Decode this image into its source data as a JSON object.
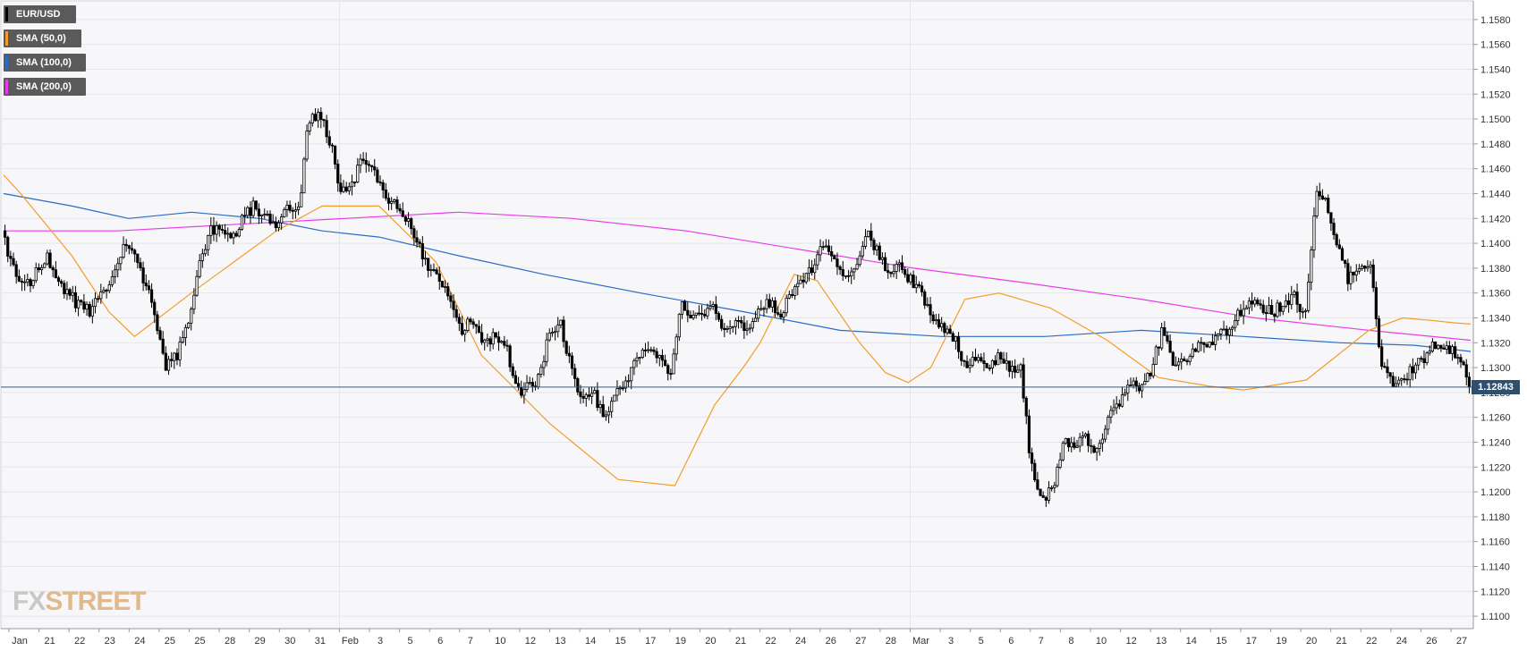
{
  "chart_data": {
    "type": "candlestick",
    "symbol": "EUR/USD",
    "legend": [
      {
        "label": "EUR/USD",
        "color": "#000000"
      },
      {
        "label": "SMA (50,0)",
        "color": "#f39c2b"
      },
      {
        "label": "SMA (100,0)",
        "color": "#2a6bc4"
      },
      {
        "label": "SMA (200,0)",
        "color": "#e83de8"
      }
    ],
    "last_price": 1.12843,
    "last_price_label": "1.12843",
    "ylim": [
      1.109,
      1.1595
    ],
    "y_ticks": [
      "1.1100",
      "1.1120",
      "1.1140",
      "1.1160",
      "1.1180",
      "1.1200",
      "1.1220",
      "1.1240",
      "1.1260",
      "1.1280",
      "1.1300",
      "1.1320",
      "1.1340",
      "1.1360",
      "1.1380",
      "1.1400",
      "1.1420",
      "1.1440",
      "1.1460",
      "1.1480",
      "1.1500",
      "1.1520",
      "1.1540",
      "1.1560",
      "1.1580"
    ],
    "x_ticks": [
      "Jan",
      "21",
      "22",
      "23",
      "24",
      "25",
      "25",
      "28",
      "29",
      "30",
      "31",
      "Feb",
      "3",
      "5",
      "6",
      "7",
      "10",
      "12",
      "13",
      "14",
      "15",
      "17",
      "19",
      "20",
      "21",
      "22",
      "24",
      "26",
      "27",
      "28",
      "Mar",
      "3",
      "5",
      "6",
      "7",
      "8",
      "10",
      "12",
      "13",
      "14",
      "15",
      "17",
      "19",
      "20",
      "21",
      "22",
      "24",
      "26",
      "27"
    ],
    "grid": true,
    "candle_colors": {
      "up": "#ffffff",
      "down": "#000000"
    },
    "price_path": [
      1.141,
      1.138,
      1.1365,
      1.1375,
      1.139,
      1.137,
      1.136,
      1.135,
      1.1345,
      1.136,
      1.137,
      1.1395,
      1.139,
      1.137,
      1.134,
      1.13,
      1.131,
      1.134,
      1.138,
      1.141,
      1.1415,
      1.1405,
      1.142,
      1.143,
      1.142,
      1.1415,
      1.143,
      1.142,
      1.15,
      1.1505,
      1.148,
      1.144,
      1.145,
      1.147,
      1.1455,
      1.144,
      1.143,
      1.142,
      1.14,
      1.138,
      1.137,
      1.135,
      1.133,
      1.134,
      1.132,
      1.1325,
      1.132,
      1.128,
      1.1285,
      1.129,
      1.133,
      1.1335,
      1.13,
      1.127,
      1.128,
      1.126,
      1.128,
      1.129,
      1.131,
      1.1315,
      1.131,
      1.129,
      1.135,
      1.134,
      1.1345,
      1.135,
      1.133,
      1.134,
      1.133,
      1.1345,
      1.1355,
      1.134,
      1.136,
      1.137,
      1.138,
      1.14,
      1.139,
      1.1375,
      1.138,
      1.1415,
      1.139,
      1.1375,
      1.138,
      1.137,
      1.136,
      1.134,
      1.133,
      1.1325,
      1.13,
      1.131,
      1.13,
      1.131,
      1.13,
      1.13,
      1.122,
      1.119,
      1.1205,
      1.124,
      1.1235,
      1.1245,
      1.123,
      1.126,
      1.127,
      1.129,
      1.128,
      1.13,
      1.133,
      1.13,
      1.1305,
      1.1315,
      1.132,
      1.1325,
      1.133,
      1.1345,
      1.1355,
      1.135,
      1.1345,
      1.135,
      1.136,
      1.134,
      1.144,
      1.143,
      1.14,
      1.137,
      1.1385,
      1.138,
      1.13,
      1.1285,
      1.129,
      1.13,
      1.131,
      1.132,
      1.1315,
      1.131,
      1.1284
    ],
    "sma_50": [
      [
        1.1455,
        0
      ],
      [
        1.144,
        30
      ],
      [
        1.139,
        120
      ],
      [
        1.1345,
        185
      ],
      [
        1.1325,
        230
      ],
      [
        1.136,
        330
      ],
      [
        1.141,
        480
      ],
      [
        1.143,
        560
      ],
      [
        1.143,
        660
      ],
      [
        1.1385,
        760
      ],
      [
        1.131,
        840
      ],
      [
        1.1255,
        960
      ],
      [
        1.121,
        1080
      ],
      [
        1.1205,
        1180
      ],
      [
        1.127,
        1250
      ],
      [
        1.13,
        1300
      ],
      [
        1.132,
        1330
      ],
      [
        1.1375,
        1390
      ],
      [
        1.137,
        1430
      ],
      [
        1.132,
        1505
      ],
      [
        1.1296,
        1550
      ],
      [
        1.1288,
        1590
      ],
      [
        1.13,
        1630
      ],
      [
        1.1355,
        1690
      ],
      [
        1.136,
        1750
      ],
      [
        1.1348,
        1840
      ],
      [
        1.1322,
        1940
      ],
      [
        1.1292,
        2030
      ],
      [
        1.1285,
        2120
      ],
      [
        1.1282,
        2180
      ],
      [
        1.129,
        2290
      ],
      [
        1.133,
        2400
      ],
      [
        1.134,
        2460
      ],
      [
        1.1338,
        2510
      ],
      [
        1.1336,
        2550
      ],
      [
        1.1335,
        2579
      ]
    ],
    "sma_100": [
      [
        1.144,
        0
      ],
      [
        1.143,
        120
      ],
      [
        1.142,
        220
      ],
      [
        1.1425,
        330
      ],
      [
        1.142,
        450
      ],
      [
        1.141,
        560
      ],
      [
        1.1405,
        660
      ],
      [
        1.139,
        800
      ],
      [
        1.1375,
        950
      ],
      [
        1.136,
        1120
      ],
      [
        1.1345,
        1300
      ],
      [
        1.133,
        1470
      ],
      [
        1.1325,
        1650
      ],
      [
        1.1325,
        1830
      ],
      [
        1.133,
        2000
      ],
      [
        1.1325,
        2180
      ],
      [
        1.132,
        2350
      ],
      [
        1.1318,
        2480
      ],
      [
        1.1313,
        2579
      ]
    ],
    "sma_200": [
      [
        1.141,
        0
      ],
      [
        1.141,
        200
      ],
      [
        1.1415,
        400
      ],
      [
        1.142,
        600
      ],
      [
        1.1425,
        800
      ],
      [
        1.142,
        1000
      ],
      [
        1.141,
        1200
      ],
      [
        1.1395,
        1400
      ],
      [
        1.138,
        1600
      ],
      [
        1.1368,
        1800
      ],
      [
        1.1355,
        2000
      ],
      [
        1.134,
        2200
      ],
      [
        1.133,
        2400
      ],
      [
        1.1322,
        2579
      ]
    ]
  }
}
